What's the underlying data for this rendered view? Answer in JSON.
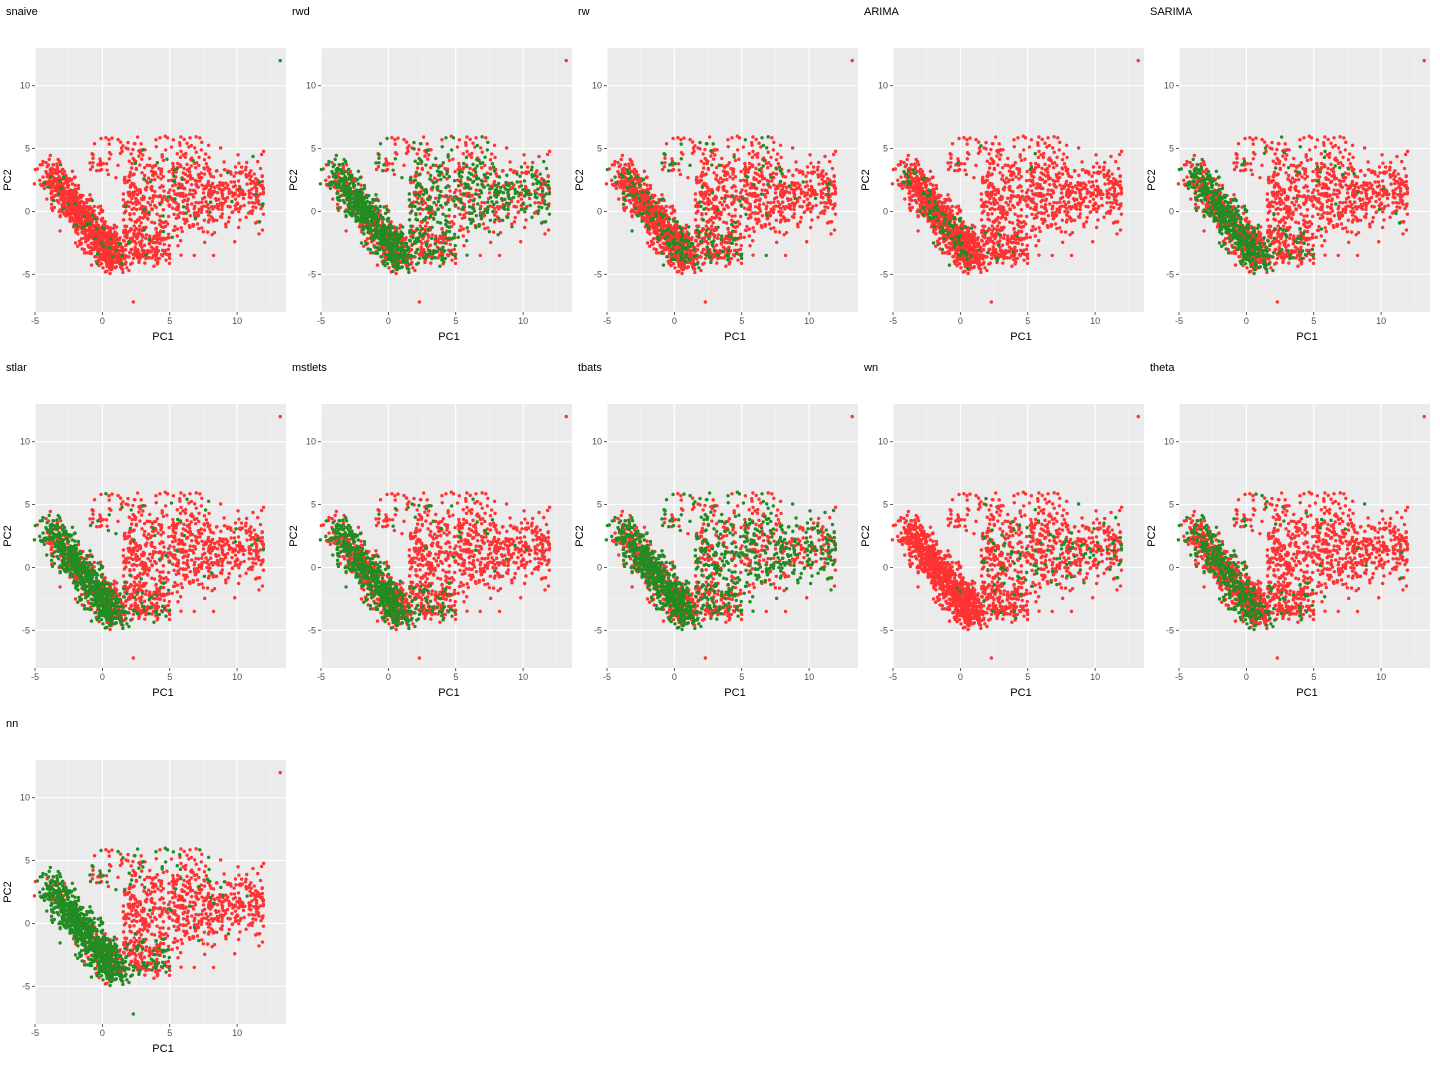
{
  "figure": {
    "colors": {
      "panel_background": "#ebebeb",
      "grid_major": "#ffffff",
      "not_selected": "#ff3333",
      "selected": "#228b22",
      "tick_text": "#4d4d4d"
    }
  },
  "chart_data": [
    {
      "type": "scatter",
      "title": "snaive",
      "xlabel": "PC1",
      "ylabel": "PC2",
      "xlim": [
        -5,
        14
      ],
      "ylim": [
        -8,
        13
      ],
      "xticks": [
        "-5",
        "0",
        "5",
        "10"
      ],
      "yticks": [
        "-5",
        "0",
        "5",
        "10"
      ],
      "legend": "none",
      "series": [
        {
          "name": "not selected",
          "color": "#ff3333"
        },
        {
          "name": "selected",
          "color": "#228b22"
        }
      ],
      "highlight": {
        "share": 0.02,
        "focus": "broad"
      },
      "outliers": [
        {
          "x": 13.2,
          "y": 12.0,
          "selected": true
        },
        {
          "x": 2.3,
          "y": -7.2,
          "selected": false
        }
      ]
    },
    {
      "type": "scatter",
      "title": "rwd",
      "xlabel": "PC1",
      "ylabel": "PC2",
      "xlim": [
        -5,
        14
      ],
      "ylim": [
        -8,
        13
      ],
      "xticks": [
        "-5",
        "0",
        "5",
        "10"
      ],
      "yticks": [
        "-5",
        "0",
        "5",
        "10"
      ],
      "legend": "none",
      "series": [
        {
          "name": "not selected",
          "color": "#ff3333"
        },
        {
          "name": "selected",
          "color": "#228b22"
        }
      ],
      "highlight": {
        "share": 0.3,
        "focus": "broad"
      },
      "outliers": [
        {
          "x": 13.2,
          "y": 12.0,
          "selected": false
        },
        {
          "x": 2.3,
          "y": -7.2,
          "selected": false
        }
      ]
    },
    {
      "type": "scatter",
      "title": "rw",
      "xlabel": "PC1",
      "ylabel": "PC2",
      "xlim": [
        -5,
        14
      ],
      "ylim": [
        -8,
        13
      ],
      "xticks": [
        "-5",
        "0",
        "5",
        "10"
      ],
      "yticks": [
        "-5",
        "0",
        "5",
        "10"
      ],
      "legend": "none",
      "series": [
        {
          "name": "not selected",
          "color": "#ff3333"
        },
        {
          "name": "selected",
          "color": "#228b22"
        }
      ],
      "highlight": {
        "share": 0.12,
        "focus": "middle"
      },
      "outliers": [
        {
          "x": 13.2,
          "y": 12.0,
          "selected": false
        },
        {
          "x": 2.3,
          "y": -7.2,
          "selected": false
        }
      ]
    },
    {
      "type": "scatter",
      "title": "ARIMA",
      "xlabel": "PC1",
      "ylabel": "PC2",
      "xlim": [
        -5,
        14
      ],
      "ylim": [
        -8,
        13
      ],
      "xticks": [
        "-5",
        "0",
        "5",
        "10"
      ],
      "yticks": [
        "-5",
        "0",
        "5",
        "10"
      ],
      "legend": "none",
      "series": [
        {
          "name": "not selected",
          "color": "#ff3333"
        },
        {
          "name": "selected",
          "color": "#228b22"
        }
      ],
      "highlight": {
        "share": 0.05,
        "focus": "left"
      },
      "outliers": [
        {
          "x": 13.2,
          "y": 12.0,
          "selected": false
        },
        {
          "x": 2.3,
          "y": -7.2,
          "selected": false
        }
      ]
    },
    {
      "type": "scatter",
      "title": "SARIMA",
      "xlabel": "PC1",
      "ylabel": "PC2",
      "xlim": [
        -5,
        14
      ],
      "ylim": [
        -8,
        13
      ],
      "xticks": [
        "-5",
        "0",
        "5",
        "10"
      ],
      "yticks": [
        "-5",
        "0",
        "5",
        "10"
      ],
      "legend": "none",
      "series": [
        {
          "name": "not selected",
          "color": "#ff3333"
        },
        {
          "name": "selected",
          "color": "#228b22"
        }
      ],
      "highlight": {
        "share": 0.25,
        "focus": "left"
      },
      "outliers": [
        {
          "x": 13.2,
          "y": 12.0,
          "selected": false
        },
        {
          "x": 2.3,
          "y": -7.2,
          "selected": false
        }
      ]
    },
    {
      "type": "scatter",
      "title": "stlar",
      "xlabel": "PC1",
      "ylabel": "PC2",
      "xlim": [
        -5,
        14
      ],
      "ylim": [
        -8,
        13
      ],
      "xticks": [
        "-5",
        "0",
        "5",
        "10"
      ],
      "yticks": [
        "-5",
        "0",
        "5",
        "10"
      ],
      "legend": "none",
      "series": [
        {
          "name": "not selected",
          "color": "#ff3333"
        },
        {
          "name": "selected",
          "color": "#228b22"
        }
      ],
      "highlight": {
        "share": 0.3,
        "focus": "left"
      },
      "outliers": [
        {
          "x": 13.2,
          "y": 12.0,
          "selected": false
        },
        {
          "x": 2.3,
          "y": -7.2,
          "selected": false
        }
      ]
    },
    {
      "type": "scatter",
      "title": "mstlets",
      "xlabel": "PC1",
      "ylabel": "PC2",
      "xlim": [
        -5,
        14
      ],
      "ylim": [
        -8,
        13
      ],
      "xticks": [
        "-5",
        "0",
        "5",
        "10"
      ],
      "yticks": [
        "-5",
        "0",
        "5",
        "10"
      ],
      "legend": "none",
      "series": [
        {
          "name": "not selected",
          "color": "#ff3333"
        },
        {
          "name": "selected",
          "color": "#228b22"
        }
      ],
      "highlight": {
        "share": 0.25,
        "focus": "left"
      },
      "outliers": [
        {
          "x": 13.2,
          "y": 12.0,
          "selected": false
        },
        {
          "x": 2.3,
          "y": -7.2,
          "selected": false
        }
      ]
    },
    {
      "type": "scatter",
      "title": "tbats",
      "xlabel": "PC1",
      "ylabel": "PC2",
      "xlim": [
        -5,
        14
      ],
      "ylim": [
        -8,
        13
      ],
      "xticks": [
        "-5",
        "0",
        "5",
        "10"
      ],
      "yticks": [
        "-5",
        "0",
        "5",
        "10"
      ],
      "legend": "none",
      "series": [
        {
          "name": "not selected",
          "color": "#ff3333"
        },
        {
          "name": "selected",
          "color": "#228b22"
        }
      ],
      "highlight": {
        "share": 0.3,
        "focus": "broad"
      },
      "outliers": [
        {
          "x": 13.2,
          "y": 12.0,
          "selected": false
        },
        {
          "x": 2.3,
          "y": -7.2,
          "selected": false
        }
      ]
    },
    {
      "type": "scatter",
      "title": "wn",
      "xlabel": "PC1",
      "ylabel": "PC2",
      "xlim": [
        -5,
        14
      ],
      "ylim": [
        -8,
        13
      ],
      "xticks": [
        "-5",
        "0",
        "5",
        "10"
      ],
      "yticks": [
        "-5",
        "0",
        "5",
        "10"
      ],
      "legend": "none",
      "series": [
        {
          "name": "not selected",
          "color": "#ff3333"
        },
        {
          "name": "selected",
          "color": "#228b22"
        }
      ],
      "highlight": {
        "share": 0.08,
        "focus": "right"
      },
      "outliers": [
        {
          "x": 13.2,
          "y": 12.0,
          "selected": false
        },
        {
          "x": 2.3,
          "y": -7.2,
          "selected": false
        }
      ]
    },
    {
      "type": "scatter",
      "title": "theta",
      "xlabel": "PC1",
      "ylabel": "PC2",
      "xlim": [
        -5,
        14
      ],
      "ylim": [
        -8,
        13
      ],
      "xticks": [
        "-5",
        "0",
        "5",
        "10"
      ],
      "yticks": [
        "-5",
        "0",
        "5",
        "10"
      ],
      "legend": "none",
      "series": [
        {
          "name": "not selected",
          "color": "#ff3333"
        },
        {
          "name": "selected",
          "color": "#228b22"
        }
      ],
      "highlight": {
        "share": 0.18,
        "focus": "left"
      },
      "outliers": [
        {
          "x": 13.2,
          "y": 12.0,
          "selected": false
        },
        {
          "x": 2.3,
          "y": -7.2,
          "selected": false
        }
      ]
    },
    {
      "type": "scatter",
      "title": "nn",
      "xlabel": "PC1",
      "ylabel": "PC2",
      "xlim": [
        -5,
        14
      ],
      "ylim": [
        -8,
        13
      ],
      "xticks": [
        "-5",
        "0",
        "5",
        "10"
      ],
      "yticks": [
        "-5",
        "0",
        "5",
        "10"
      ],
      "legend": "none",
      "series": [
        {
          "name": "not selected",
          "color": "#ff3333"
        },
        {
          "name": "selected",
          "color": "#228b22"
        }
      ],
      "highlight": {
        "share": 0.4,
        "focus": "left"
      },
      "outliers": [
        {
          "x": 13.2,
          "y": 12.0,
          "selected": false
        },
        {
          "x": 2.3,
          "y": -7.2,
          "selected": true
        }
      ]
    }
  ]
}
